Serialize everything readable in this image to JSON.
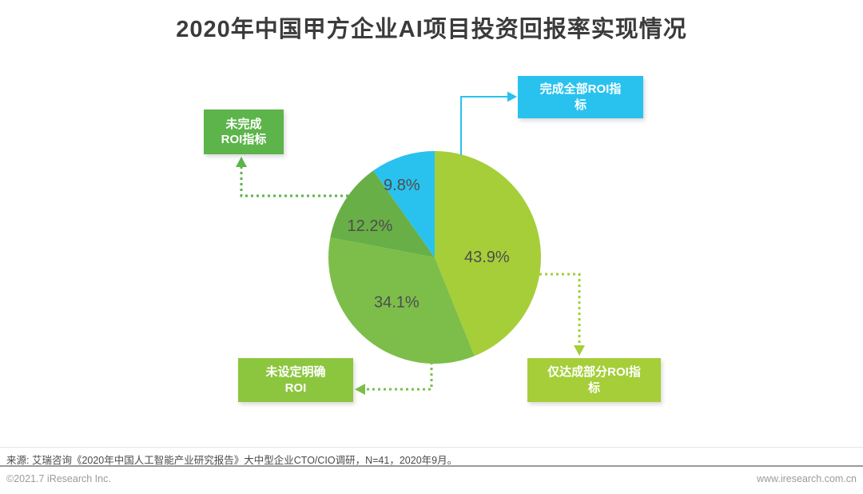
{
  "title": "2020年中国甲方企业AI项目投资回报率实现情况",
  "chart_data": {
    "type": "pie",
    "title": "2020年中国甲方企业AI项目投资回报率实现情况",
    "direction": "clockwise",
    "start_angle_deg": 0,
    "value_suffix": "%",
    "slices": [
      {
        "label": "仅达成部分ROI指标",
        "value": 43.9,
        "color": "#A6CE39",
        "label_offset": [
          -13,
          14
        ]
      },
      {
        "label": "未设定明确ROI",
        "value": 34.1,
        "color": "#7DBE4A",
        "label_offset": [
          3,
          -6
        ]
      },
      {
        "label": "未完成ROI指标",
        "value": 12.2,
        "color": "#68AF47",
        "label_offset": [
          -14,
          3
        ]
      },
      {
        "label": "完成全部ROI指标",
        "value": 9.8,
        "color": "#29C2EF",
        "label_offset": [
          -17,
          -15
        ]
      }
    ],
    "legend_position": "callout-boxes",
    "grid": false
  },
  "callouts": [
    {
      "label": "完成全部ROI指\n标",
      "color": "#29C2EF"
    },
    {
      "label": "未完成\nROI指标",
      "color": "#5CB44A"
    },
    {
      "label": "未设定明确\nROI",
      "color": "#8CC63F"
    },
    {
      "label": "仅达成部分ROI指\n标",
      "color": "#A5CE39"
    }
  ],
  "source_note": "来源: 艾瑞咨询《2020年中国人工智能产业研究报告》大中型企业CTO/CIO调研，N=41，2020年9月。",
  "footer": {
    "left": "©2021.7 iResearch Inc.",
    "right": "www.iresearch.com.cn"
  }
}
